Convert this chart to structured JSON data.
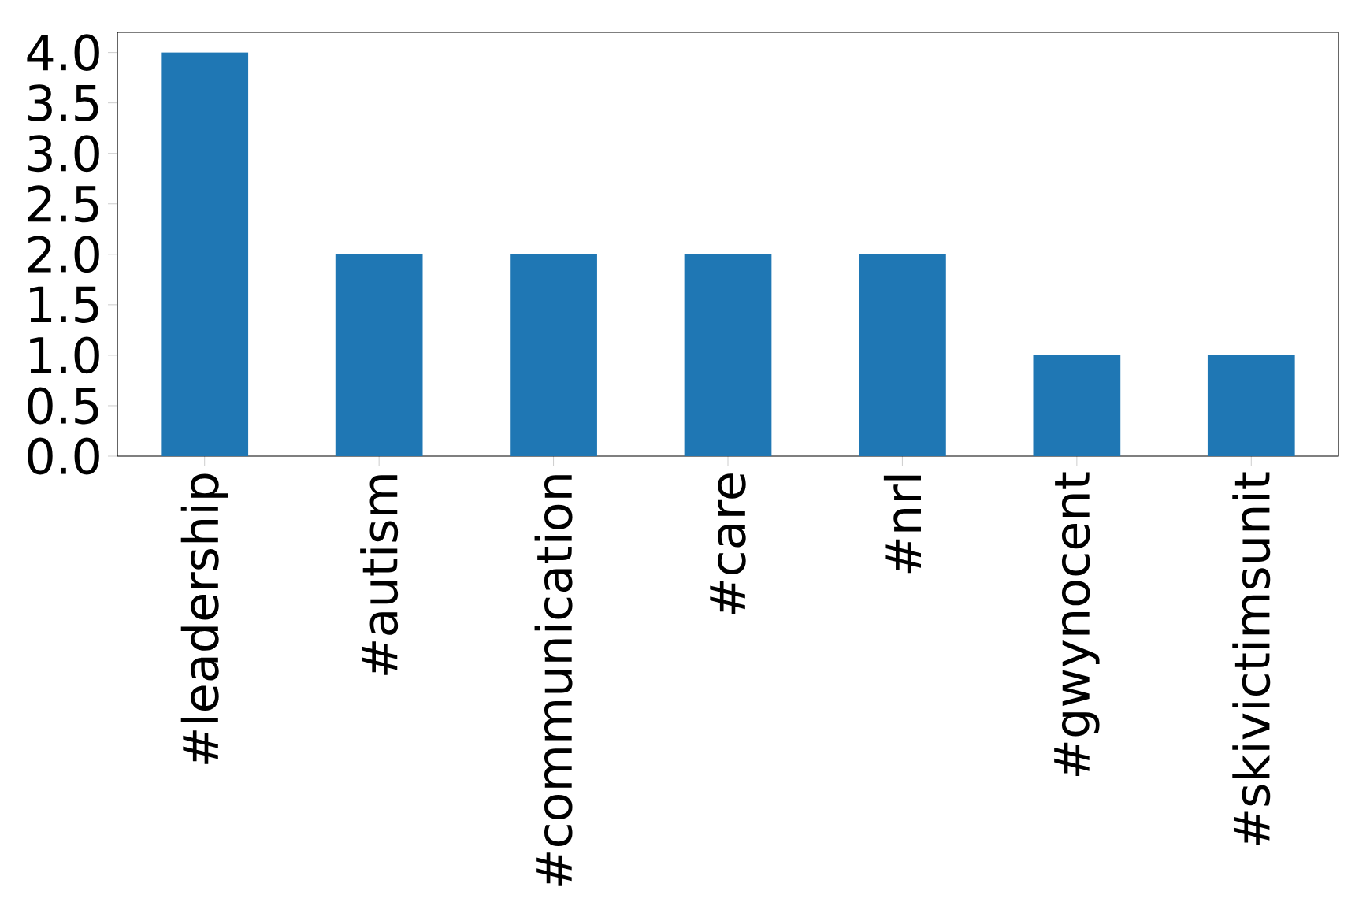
{
  "chart_data": {
    "type": "bar",
    "categories": [
      "#leadership",
      "#autism",
      "#communication",
      "#care",
      "#nrl",
      "#gwynocent",
      "#skivictimsunit"
    ],
    "values": [
      4,
      2,
      2,
      2,
      2,
      1,
      1
    ],
    "color": "#1f77b4",
    "ylim": [
      0,
      4.2
    ],
    "yticks": [
      {
        "value": 0,
        "label": "0.0"
      },
      {
        "value": 0.5,
        "label": "0.5"
      },
      {
        "value": 1,
        "label": "1.0"
      },
      {
        "value": 1.5,
        "label": "1.5"
      },
      {
        "value": 2,
        "label": "2.0"
      },
      {
        "value": 2.5,
        "label": "2.5"
      },
      {
        "value": 3,
        "label": "3.0"
      },
      {
        "value": 3.5,
        "label": "3.5"
      },
      {
        "value": 4,
        "label": "4.0"
      }
    ],
    "grid": false
  }
}
